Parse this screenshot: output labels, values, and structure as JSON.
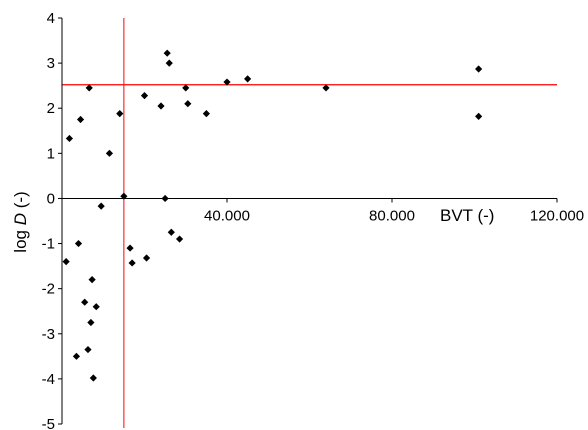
{
  "chart_data": {
    "type": "scatter",
    "xlabel": "BVT (-)",
    "ylabel_prefix": "log ",
    "ylabel_var": "D",
    "ylabel_suffix": " (-)",
    "xlim": [
      0,
      120000
    ],
    "ylim": [
      -5,
      4
    ],
    "x_ticks": [
      40000,
      80000,
      120000
    ],
    "x_tick_labels": [
      "40.000",
      "80.000",
      "120.000"
    ],
    "y_ticks": [
      -5,
      -4,
      -3,
      -2,
      -1,
      0,
      1,
      2,
      3,
      4
    ],
    "y_tick_labels": [
      "-5",
      "-4",
      "-3",
      "-2",
      "-1",
      "0",
      "1",
      "2",
      "3",
      "4"
    ],
    "grid": false,
    "marker_color": "#000000",
    "reference_line_color": "#ff0000",
    "reference_lines": {
      "x": 15000,
      "y": 2.52
    },
    "points": [
      {
        "x": 1000,
        "y": -1.4
      },
      {
        "x": 1800,
        "y": 1.33
      },
      {
        "x": 3500,
        "y": -3.5
      },
      {
        "x": 4000,
        "y": -1.0
      },
      {
        "x": 4500,
        "y": 1.75
      },
      {
        "x": 5500,
        "y": -2.3
      },
      {
        "x": 6300,
        "y": -3.35
      },
      {
        "x": 6600,
        "y": 2.45
      },
      {
        "x": 7000,
        "y": -2.75
      },
      {
        "x": 7300,
        "y": -1.8
      },
      {
        "x": 7600,
        "y": -3.98
      },
      {
        "x": 8300,
        "y": -2.4
      },
      {
        "x": 9500,
        "y": -0.17
      },
      {
        "x": 11500,
        "y": 1.0
      },
      {
        "x": 15000,
        "y": 0.05
      },
      {
        "x": 16500,
        "y": -1.1
      },
      {
        "x": 17000,
        "y": -1.43
      },
      {
        "x": 20000,
        "y": 2.28
      },
      {
        "x": 20500,
        "y": -1.32
      },
      {
        "x": 24000,
        "y": 2.05
      },
      {
        "x": 25000,
        "y": 0.0
      },
      {
        "x": 25500,
        "y": 3.22
      },
      {
        "x": 26000,
        "y": 3.0
      },
      {
        "x": 26500,
        "y": -0.75
      },
      {
        "x": 28500,
        "y": -0.9
      },
      {
        "x": 30000,
        "y": 2.45
      },
      {
        "x": 30500,
        "y": 2.1
      },
      {
        "x": 35000,
        "y": 1.88
      },
      {
        "x": 40000,
        "y": 2.58
      },
      {
        "x": 45000,
        "y": 2.65
      },
      {
        "x": 64000,
        "y": 2.45
      },
      {
        "x": 101000,
        "y": 2.87
      },
      {
        "x": 101000,
        "y": 1.82
      },
      {
        "x": 14000,
        "y": 1.88
      }
    ]
  }
}
